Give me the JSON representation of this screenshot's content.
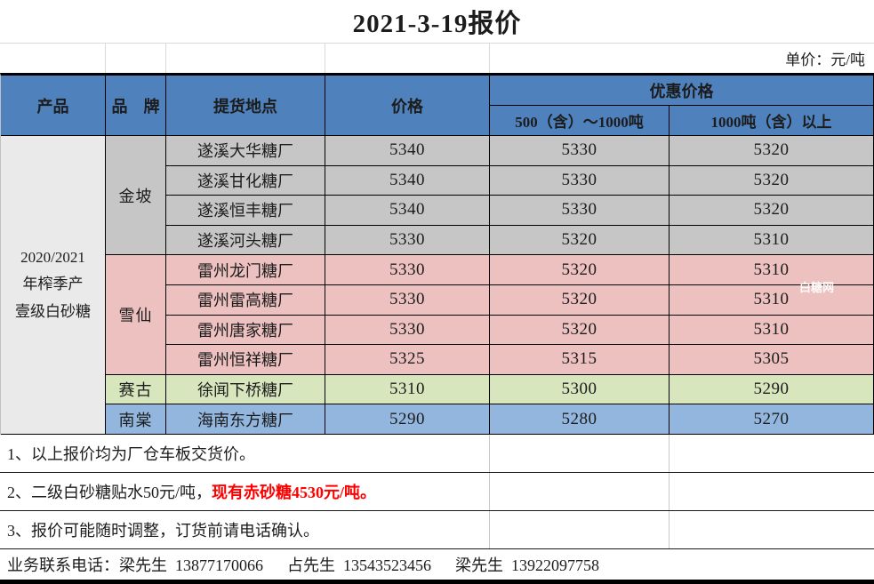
{
  "title": "2021-3-19报价",
  "unit_label": "单价：元/吨",
  "watermark": "白糖网",
  "colors": {
    "header_bg": "#4f81bd",
    "product_bg": "#eaeaea",
    "group_jinpo": "#c6c6c6",
    "group_xuexian": "#ecc1c0",
    "group_saigu": "#d8e6be",
    "group_nantang": "#92b6dd",
    "note_highlight": "#ff0000"
  },
  "table": {
    "headers": {
      "product": "产品",
      "brand": "品　牌",
      "location": "提货地点",
      "price": "价格",
      "discount": "优惠价格",
      "tier1": "500（含）～1000吨",
      "tier2": "1000吨（含）以上"
    },
    "product": "2020/2021\n年榨季产\n壹级白砂糖",
    "groups": [
      {
        "brand": "金坡",
        "color": "#c6c6c6",
        "row_span": 4
      },
      {
        "brand": "雪仙",
        "color": "#ecc1c0",
        "row_span": 4
      },
      {
        "brand": "赛古",
        "color": "#d8e6be",
        "row_span": 1
      },
      {
        "brand": "南棠",
        "color": "#92b6dd",
        "row_span": 1
      }
    ],
    "rows": [
      {
        "location": "遂溪大华糖厂",
        "price": "5340",
        "tier1": "5330",
        "tier2": "5320",
        "group": 0
      },
      {
        "location": "遂溪甘化糖厂",
        "price": "5340",
        "tier1": "5330",
        "tier2": "5320",
        "group": 0
      },
      {
        "location": "遂溪恒丰糖厂",
        "price": "5340",
        "tier1": "5330",
        "tier2": "5320",
        "group": 0
      },
      {
        "location": "遂溪河头糖厂",
        "price": "5330",
        "tier1": "5320",
        "tier2": "5310",
        "group": 0
      },
      {
        "location": "雷州龙门糖厂",
        "price": "5330",
        "tier1": "5320",
        "tier2": "5310",
        "group": 1
      },
      {
        "location": "雷州雷高糖厂",
        "price": "5330",
        "tier1": "5320",
        "tier2": "5310",
        "group": 1
      },
      {
        "location": "雷州唐家糖厂",
        "price": "5330",
        "tier1": "5320",
        "tier2": "5310",
        "group": 1
      },
      {
        "location": "雷州恒祥糖厂",
        "price": "5325",
        "tier1": "5315",
        "tier2": "5305",
        "group": 1
      },
      {
        "location": "徐闻下桥糖厂",
        "price": "5310",
        "tier1": "5300",
        "tier2": "5290",
        "group": 2
      },
      {
        "location": "海南东方糖厂",
        "price": "5290",
        "tier1": "5280",
        "tier2": "5270",
        "group": 3
      }
    ]
  },
  "notes": [
    {
      "text": "1、以上报价均为厂仓车板交货价。"
    },
    {
      "text": "2、二级白砂糖贴水50元/吨，",
      "highlight": "现有赤砂糖4530元/吨。"
    },
    {
      "text": "3、报价可能随时调整，订货前请电话确认。"
    }
  ],
  "contact": "业务联系电话：梁先生  13877170066　  占先生  13543523456　  梁先生  13922097758"
}
